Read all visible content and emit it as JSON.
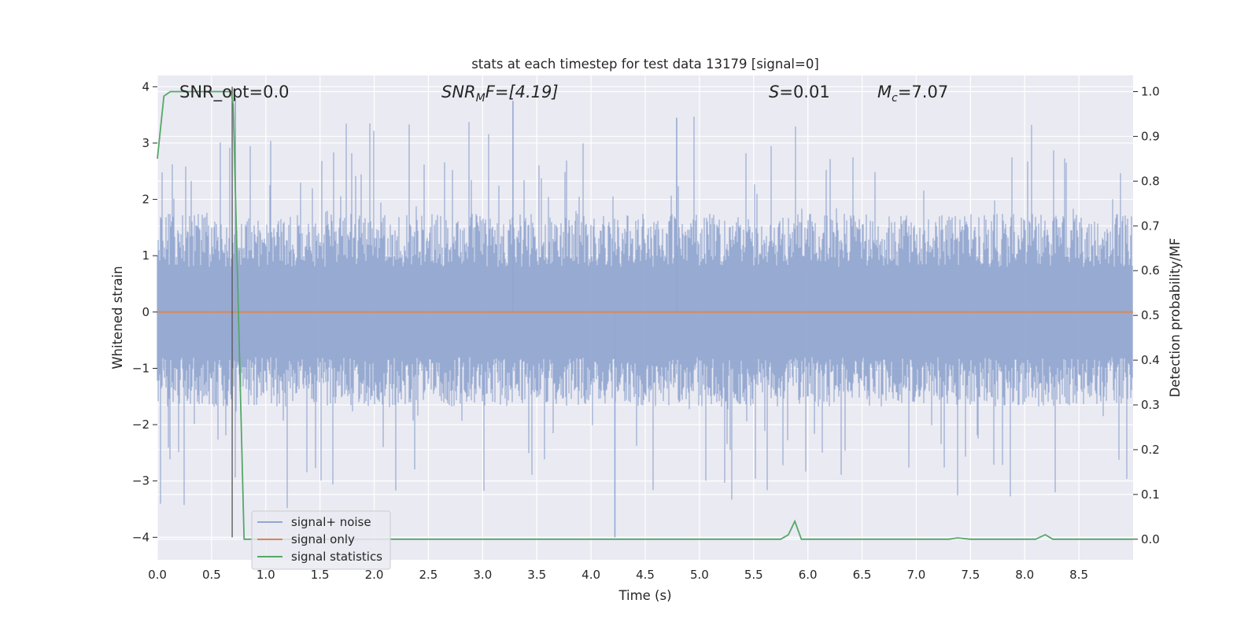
{
  "chart_data": {
    "type": "line",
    "title": "stats at each timestep for test data 13179 [signal=0]",
    "xlabel": "Time (s)",
    "ylabel": "Whitened strain",
    "ylabel_right": "Detection probability/MF",
    "xlim": [
      0.0,
      9.0
    ],
    "ylim": [
      -4.4,
      4.2
    ],
    "ylim_right": [
      -0.046,
      1.036
    ],
    "x_ticks": [
      "0.0",
      "0.5",
      "1.0",
      "1.5",
      "2.0",
      "2.5",
      "3.0",
      "3.5",
      "4.0",
      "4.5",
      "5.0",
      "5.5",
      "6.0",
      "6.5",
      "7.0",
      "7.5",
      "8.0",
      "8.5"
    ],
    "y_ticks": [
      "−4",
      "−3",
      "−2",
      "−1",
      "0",
      "1",
      "2",
      "3",
      "4"
    ],
    "y_right_ticks": [
      "0.0",
      "0.1",
      "0.2",
      "0.3",
      "0.4",
      "0.5",
      "0.6",
      "0.7",
      "0.8",
      "0.9",
      "1.0"
    ],
    "grid": true,
    "legend_position": "lower-left",
    "annotations": {
      "snr_opt": "SNR_opt=0.0",
      "snr_mf_main": "SNR",
      "snr_mf_sub": "M",
      "snr_mf_rest": "F=[4.19]",
      "s_main": "S",
      "s_rest": "=0.01",
      "mc_main": "M",
      "mc_sub": "c",
      "mc_rest": "=7.07"
    },
    "vertical_line": {
      "x": 0.69,
      "from_y": -4.0,
      "to_y": 4.0
    },
    "series": [
      {
        "name": "signal+ noise",
        "color": "#92a6d0",
        "kind": "noise",
        "t_start": 0.0,
        "t_end": 9.0,
        "typical_envelope": [
          -1.6,
          1.7
        ],
        "max_excursion": [
          -4.0,
          3.8
        ]
      },
      {
        "name": "signal only",
        "color": "#dd8452",
        "kind": "line",
        "x": [
          0.0,
          9.0
        ],
        "y": [
          0.0,
          0.0
        ]
      },
      {
        "name": "signal statistics",
        "color": "#55a868",
        "kind": "line",
        "axis": "right",
        "x": [
          0.0,
          0.06,
          0.12,
          0.3,
          0.5,
          0.68,
          0.7,
          0.8,
          1.0,
          2.0,
          3.0,
          4.0,
          5.0,
          5.75,
          5.82,
          5.88,
          5.94,
          6.5,
          7.0,
          7.3,
          7.38,
          7.5,
          8.0,
          8.1,
          8.19,
          8.26,
          8.5,
          9.0
        ],
        "y": [
          0.85,
          0.99,
          1.0,
          1.0,
          1.0,
          1.0,
          0.97,
          0.0,
          0.0,
          0.0,
          0.0,
          0.0,
          0.0,
          0.0,
          0.01,
          0.04,
          0.0,
          0.0,
          0.0,
          0.0,
          0.003,
          0.0,
          0.0,
          0.0,
          0.01,
          0.0,
          0.0,
          0.0
        ]
      }
    ]
  }
}
